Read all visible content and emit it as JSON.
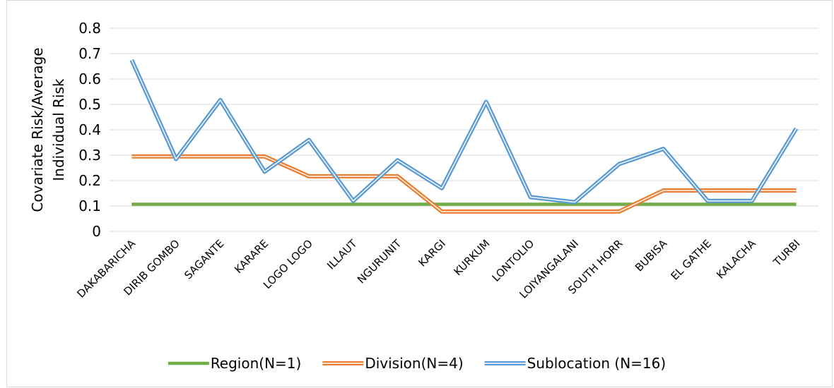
{
  "chart_data": {
    "type": "line",
    "y_label": "Covariate Risk/Average Individual Risk",
    "categories": [
      "DAKABARICHA",
      "DIRIB GOMBO",
      "SAGANTE",
      "KARARE",
      "LOGO LOGO",
      "ILLAUT",
      "NGURUNIT",
      "KARGI",
      "KURKUM",
      "LONTOLIO",
      "LOIYANGALANI",
      "SOUTH HORR",
      "BUBISA",
      "EL GATHE",
      "KALACHA",
      "TURBI"
    ],
    "series": [
      {
        "name": "Region(N=1)",
        "color": "#70ad47",
        "double": false,
        "values": [
          0.107,
          0.107,
          0.107,
          0.107,
          0.107,
          0.107,
          0.107,
          0.107,
          0.107,
          0.107,
          0.107,
          0.107,
          0.107,
          0.107,
          0.107,
          0.107
        ]
      },
      {
        "name": "Division(N=4)",
        "color": "#ed7d31",
        "double": true,
        "values": [
          0.295,
          0.295,
          0.295,
          0.295,
          0.217,
          0.217,
          0.217,
          0.078,
          0.078,
          0.078,
          0.078,
          0.078,
          0.161,
          0.161,
          0.161,
          0.161
        ]
      },
      {
        "name": "Sublocation (N=16)",
        "color": "#5b9bd5",
        "double": true,
        "values": [
          0.675,
          0.285,
          0.517,
          0.235,
          0.36,
          0.12,
          0.28,
          0.17,
          0.51,
          0.135,
          0.115,
          0.265,
          0.325,
          0.12,
          0.12,
          0.405
        ]
      }
    ],
    "ylim": [
      0,
      0.8
    ],
    "yticks": [
      0,
      0.1,
      0.2,
      0.3,
      0.4,
      0.5,
      0.6,
      0.7,
      0.8
    ],
    "grid": true
  }
}
